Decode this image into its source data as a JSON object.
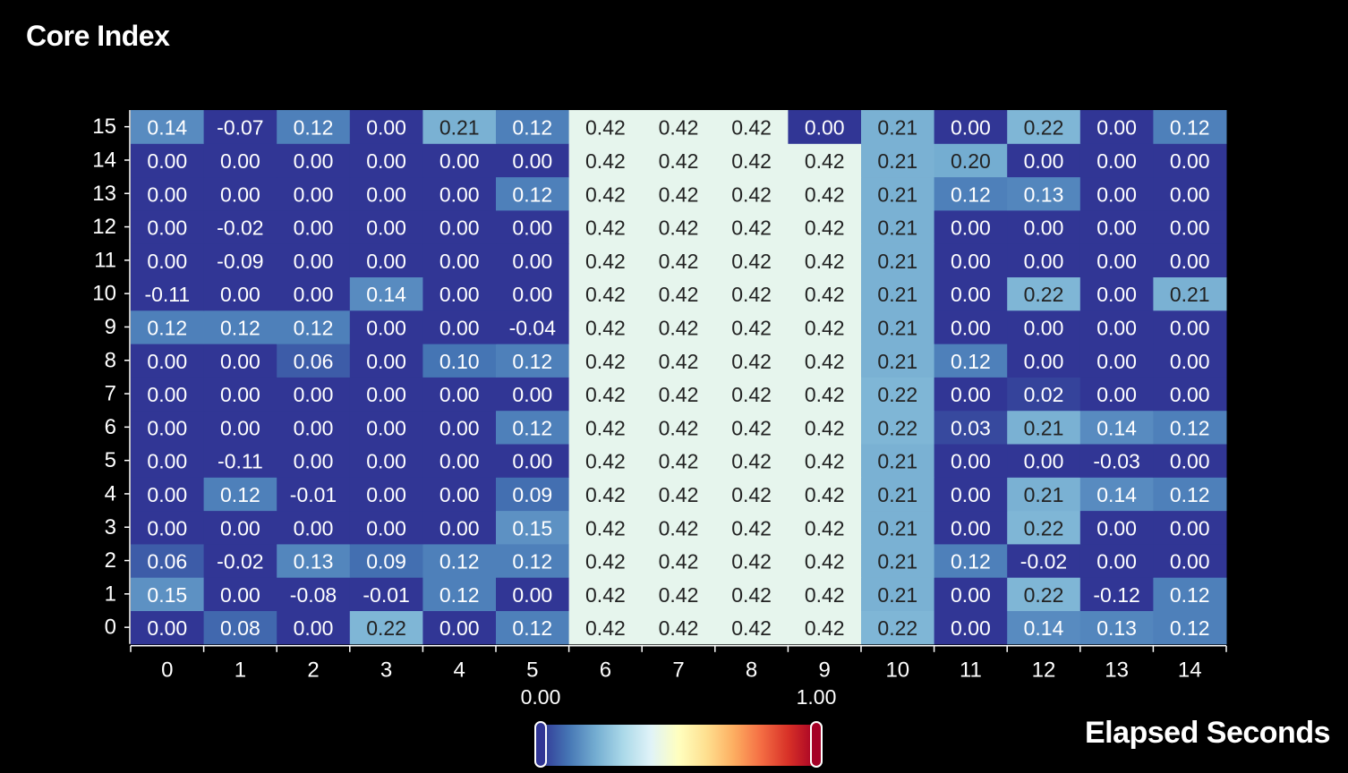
{
  "chart_data": {
    "type": "heatmap",
    "ylabel": "Core Index",
    "xlabel": "Elapsed Seconds",
    "x": [
      0,
      1,
      2,
      3,
      4,
      5,
      6,
      7,
      8,
      9,
      10,
      11,
      12,
      13,
      14
    ],
    "y": [
      0,
      1,
      2,
      3,
      4,
      5,
      6,
      7,
      8,
      9,
      10,
      11,
      12,
      13,
      14,
      15
    ],
    "color_range": [
      0.0,
      1.0
    ],
    "color_range_labels": [
      "0.00",
      "1.00"
    ],
    "colorscale": [
      "#313695",
      "#4575b4",
      "#74add1",
      "#abd9e9",
      "#e0f3f8",
      "#ffffbf",
      "#fee090",
      "#fdae61",
      "#f46d43",
      "#d73027",
      "#a50026"
    ],
    "values": [
      [
        "0.00",
        "0.08",
        "0.00",
        "0.22",
        "0.00",
        "0.12",
        "0.42",
        "0.42",
        "0.42",
        "0.42",
        "0.22",
        "0.00",
        "0.14",
        "0.13",
        "0.12"
      ],
      [
        "0.15",
        "0.00",
        "-0.08",
        "-0.01",
        "0.12",
        "0.00",
        "0.42",
        "0.42",
        "0.42",
        "0.42",
        "0.21",
        "0.00",
        "0.22",
        "-0.12",
        "0.12"
      ],
      [
        "0.06",
        "-0.02",
        "0.13",
        "0.09",
        "0.12",
        "0.12",
        "0.42",
        "0.42",
        "0.42",
        "0.42",
        "0.21",
        "0.12",
        "-0.02",
        "0.00",
        "0.00"
      ],
      [
        "0.00",
        "0.00",
        "0.00",
        "0.00",
        "0.00",
        "0.15",
        "0.42",
        "0.42",
        "0.42",
        "0.42",
        "0.21",
        "0.00",
        "0.22",
        "0.00",
        "0.00"
      ],
      [
        "0.00",
        "0.12",
        "-0.01",
        "0.00",
        "0.00",
        "0.09",
        "0.42",
        "0.42",
        "0.42",
        "0.42",
        "0.21",
        "0.00",
        "0.21",
        "0.14",
        "0.12"
      ],
      [
        "0.00",
        "-0.11",
        "0.00",
        "0.00",
        "0.00",
        "0.00",
        "0.42",
        "0.42",
        "0.42",
        "0.42",
        "0.21",
        "0.00",
        "0.00",
        "-0.03",
        "0.00"
      ],
      [
        "0.00",
        "0.00",
        "0.00",
        "0.00",
        "0.00",
        "0.12",
        "0.42",
        "0.42",
        "0.42",
        "0.42",
        "0.22",
        "0.03",
        "0.21",
        "0.14",
        "0.12"
      ],
      [
        "0.00",
        "0.00",
        "0.00",
        "0.00",
        "0.00",
        "0.00",
        "0.42",
        "0.42",
        "0.42",
        "0.42",
        "0.22",
        "0.00",
        "0.02",
        "0.00",
        "0.00"
      ],
      [
        "0.00",
        "0.00",
        "0.06",
        "0.00",
        "0.10",
        "0.12",
        "0.42",
        "0.42",
        "0.42",
        "0.42",
        "0.21",
        "0.12",
        "0.00",
        "0.00",
        "0.00"
      ],
      [
        "0.12",
        "0.12",
        "0.12",
        "0.00",
        "0.00",
        "-0.04",
        "0.42",
        "0.42",
        "0.42",
        "0.42",
        "0.21",
        "0.00",
        "0.00",
        "0.00",
        "0.00"
      ],
      [
        "-0.11",
        "0.00",
        "0.00",
        "0.14",
        "0.00",
        "0.00",
        "0.42",
        "0.42",
        "0.42",
        "0.42",
        "0.21",
        "0.00",
        "0.22",
        "0.00",
        "0.21"
      ],
      [
        "0.00",
        "-0.09",
        "0.00",
        "0.00",
        "0.00",
        "0.00",
        "0.42",
        "0.42",
        "0.42",
        "0.42",
        "0.21",
        "0.00",
        "0.00",
        "0.00",
        "0.00"
      ],
      [
        "0.00",
        "-0.02",
        "0.00",
        "0.00",
        "0.00",
        "0.00",
        "0.42",
        "0.42",
        "0.42",
        "0.42",
        "0.21",
        "0.00",
        "0.00",
        "0.00",
        "0.00"
      ],
      [
        "0.00",
        "0.00",
        "0.00",
        "0.00",
        "0.00",
        "0.12",
        "0.42",
        "0.42",
        "0.42",
        "0.42",
        "0.21",
        "0.12",
        "0.13",
        "0.00",
        "0.00"
      ],
      [
        "0.00",
        "0.00",
        "0.00",
        "0.00",
        "0.00",
        "0.00",
        "0.42",
        "0.42",
        "0.42",
        "0.42",
        "0.21",
        "0.20",
        "0.00",
        "0.00",
        "0.00"
      ],
      [
        "0.14",
        "-0.07",
        "0.12",
        "0.00",
        "0.21",
        "0.12",
        "0.42",
        "0.42",
        "0.42",
        "0.00",
        "0.21",
        "0.00",
        "0.22",
        "0.00",
        "0.12"
      ]
    ]
  }
}
